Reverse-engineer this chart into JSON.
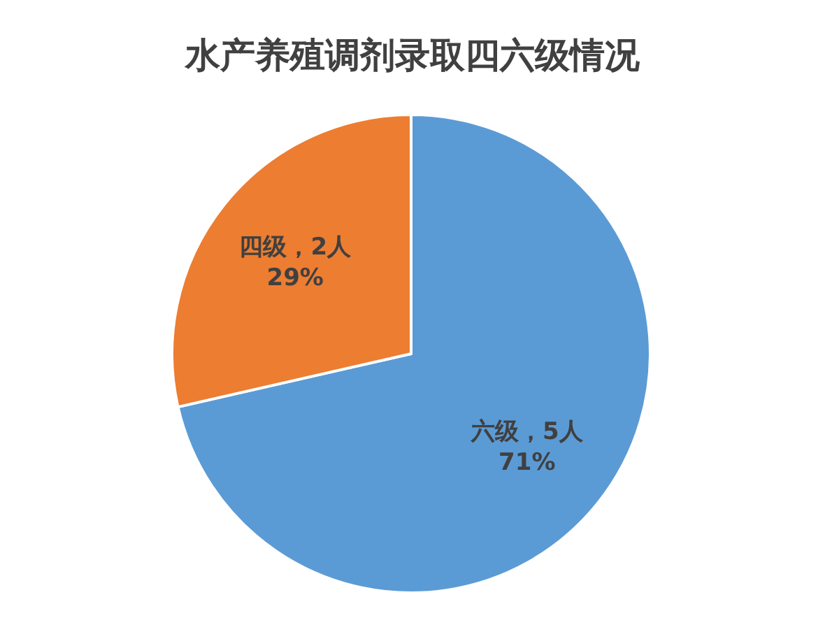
{
  "chart_data": {
    "type": "pie",
    "title": "水产养殖调剂录取四六级情况",
    "categories": [
      "六级",
      "四级"
    ],
    "values": [
      5,
      2
    ],
    "colors": [
      "#5b9bd5",
      "#ed7d31"
    ],
    "value_labels": [
      "，5人\n71%",
      "，2人\n29%"
    ],
    "legend": false
  }
}
